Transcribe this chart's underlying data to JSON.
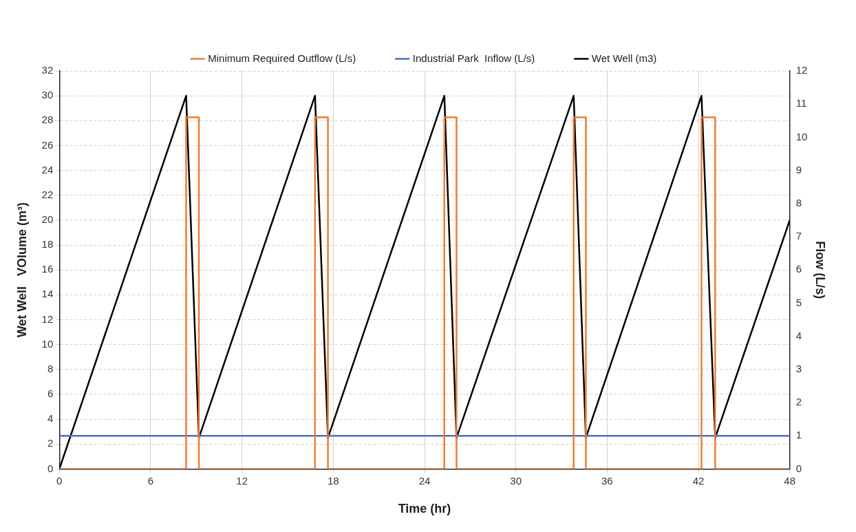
{
  "chart_data": {
    "type": "line",
    "xlabel": "Time (hr)",
    "ylabel": "Wet Well   VOlume (m³)",
    "y2label": "Flow (L/s)",
    "xlim": [
      0,
      48
    ],
    "xticks": [
      0,
      6,
      12,
      18,
      24,
      30,
      36,
      42,
      48
    ],
    "ylim": [
      0,
      32
    ],
    "yticks": [
      0,
      2,
      4,
      6,
      8,
      10,
      12,
      14,
      16,
      18,
      20,
      22,
      24,
      26,
      28,
      30,
      32
    ],
    "y2lim": [
      0,
      12
    ],
    "y2ticks": [
      0,
      1,
      2,
      3,
      4,
      5,
      6,
      7,
      8,
      9,
      10,
      11,
      12
    ],
    "grid": true,
    "legend": "top",
    "marker": "none",
    "line_style": "solid",
    "series": [
      {
        "name": "Wet Well (m3)",
        "color": "#000000",
        "x": [
          0,
          8.33,
          9.17,
          16.8,
          17.65,
          25.3,
          26.1,
          33.8,
          34.6,
          42.2,
          43.1,
          48
        ],
        "values": [
          0,
          30,
          2.5,
          30,
          2.5,
          30,
          2.5,
          30,
          2.5,
          30,
          2.5,
          20
        ]
      },
      {
        "name": "Industrial Park  Inflow (L/s)",
        "color": "#4472c4",
        "axis": "y2",
        "x": [
          0,
          48
        ],
        "values": [
          1,
          1
        ]
      },
      {
        "name": "Minimum Required Outflow (L/s)",
        "color": "#ed7d31",
        "axis": "y2",
        "x": [
          0,
          8.33,
          8.33,
          9.17,
          9.17,
          16.8,
          16.8,
          17.65,
          17.65,
          25.3,
          25.3,
          26.1,
          26.1,
          33.8,
          33.8,
          34.6,
          34.6,
          42.2,
          42.2,
          43.1,
          43.1,
          48
        ],
        "values": [
          0,
          0,
          10.6,
          10.6,
          0,
          0,
          10.6,
          10.6,
          0,
          0,
          10.6,
          10.6,
          0,
          0,
          10.6,
          10.6,
          0,
          0,
          10.6,
          10.6,
          0,
          0
        ]
      }
    ]
  }
}
